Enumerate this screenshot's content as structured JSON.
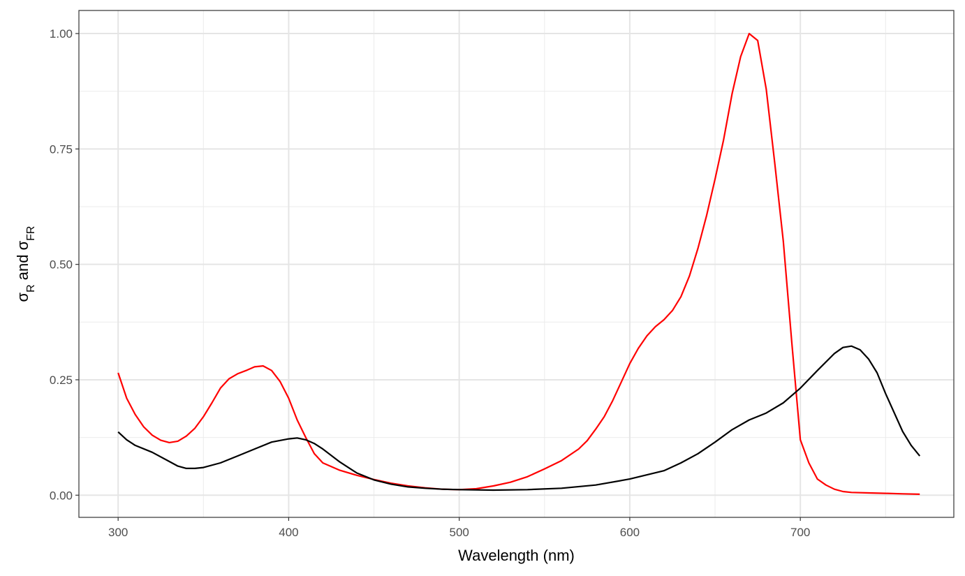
{
  "chart_data": {
    "type": "line",
    "xlabel": "Wavelength (nm)",
    "ylabel": {
      "symbol": "σ",
      "sub1": "R",
      "conj": " and ",
      "sub2": "FR"
    },
    "xlim": [
      277,
      790
    ],
    "ylim": [
      -0.048,
      1.05
    ],
    "x_ticks": [
      300,
      400,
      500,
      600,
      700
    ],
    "x_tick_labels": [
      "300",
      "400",
      "500",
      "600",
      "700"
    ],
    "y_ticks": [
      0,
      0.25,
      0.5,
      0.75,
      1
    ],
    "y_tick_labels": [
      "0.00",
      "0.25",
      "0.50",
      "0.75",
      "1.00"
    ],
    "grid": true,
    "legend": "none",
    "series": [
      {
        "color": "#ff0000",
        "x": [
          300,
          305,
          310,
          315,
          320,
          325,
          330,
          335,
          340,
          345,
          350,
          355,
          360,
          365,
          370,
          375,
          380,
          385,
          390,
          395,
          400,
          405,
          410,
          415,
          420,
          430,
          440,
          450,
          460,
          470,
          480,
          490,
          500,
          510,
          520,
          530,
          540,
          550,
          560,
          570,
          575,
          580,
          585,
          590,
          595,
          600,
          605,
          610,
          615,
          620,
          625,
          630,
          635,
          640,
          645,
          650,
          655,
          660,
          665,
          670,
          675,
          680,
          685,
          690,
          695,
          700,
          705,
          710,
          715,
          720,
          725,
          730,
          740,
          750,
          760,
          770
        ],
        "y": [
          0.265,
          0.21,
          0.175,
          0.148,
          0.13,
          0.119,
          0.114,
          0.117,
          0.128,
          0.145,
          0.17,
          0.2,
          0.232,
          0.252,
          0.263,
          0.27,
          0.278,
          0.28,
          0.27,
          0.246,
          0.21,
          0.163,
          0.125,
          0.09,
          0.07,
          0.054,
          0.043,
          0.034,
          0.026,
          0.02,
          0.016,
          0.013,
          0.012,
          0.014,
          0.02,
          0.028,
          0.04,
          0.057,
          0.075,
          0.1,
          0.118,
          0.143,
          0.17,
          0.205,
          0.245,
          0.285,
          0.318,
          0.345,
          0.365,
          0.38,
          0.4,
          0.43,
          0.475,
          0.535,
          0.605,
          0.685,
          0.77,
          0.87,
          0.95,
          1.0,
          0.985,
          0.88,
          0.72,
          0.55,
          0.33,
          0.12,
          0.07,
          0.035,
          0.022,
          0.013,
          0.008,
          0.006,
          0.005,
          0.004,
          0.003,
          0.002
        ]
      },
      {
        "color": "#000000",
        "x": [
          300,
          305,
          310,
          320,
          330,
          335,
          340,
          345,
          350,
          360,
          370,
          380,
          390,
          400,
          405,
          410,
          415,
          420,
          430,
          440,
          450,
          460,
          470,
          480,
          490,
          500,
          520,
          540,
          560,
          580,
          600,
          620,
          630,
          640,
          650,
          660,
          670,
          680,
          690,
          700,
          710,
          720,
          725,
          730,
          735,
          740,
          745,
          750,
          760,
          765,
          770
        ],
        "y": [
          0.137,
          0.12,
          0.108,
          0.093,
          0.073,
          0.063,
          0.058,
          0.058,
          0.06,
          0.07,
          0.085,
          0.1,
          0.115,
          0.122,
          0.124,
          0.12,
          0.112,
          0.1,
          0.072,
          0.048,
          0.033,
          0.024,
          0.018,
          0.015,
          0.013,
          0.012,
          0.011,
          0.012,
          0.015,
          0.022,
          0.035,
          0.053,
          0.07,
          0.09,
          0.115,
          0.142,
          0.163,
          0.178,
          0.2,
          0.232,
          0.27,
          0.307,
          0.32,
          0.323,
          0.315,
          0.295,
          0.265,
          0.22,
          0.138,
          0.108,
          0.085
        ]
      }
    ]
  }
}
